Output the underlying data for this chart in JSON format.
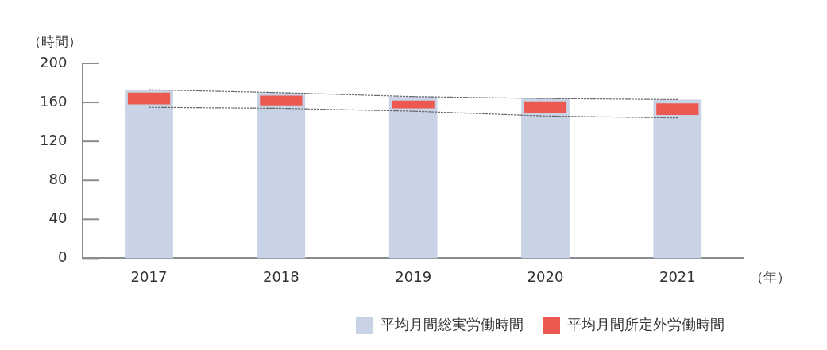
{
  "chart_data": {
    "type": "bar",
    "ylabel": "（時間）",
    "xlabel": "（年）",
    "categories": [
      "2017",
      "2018",
      "2019",
      "2020",
      "2021"
    ],
    "series": [
      {
        "name": "平均月間総実労働時間",
        "color": "#c8d3e6",
        "values": [
          173,
          170,
          166,
          164,
          163
        ]
      },
      {
        "name": "平均月間所定外労働時間",
        "color": "#eb5951",
        "values": [
          12,
          10,
          8,
          12,
          12
        ],
        "base": [
          158,
          157,
          154,
          149,
          147
        ]
      },
      {
        "type": "line",
        "color": "#666666",
        "line_style": "dotted",
        "marker": "none",
        "values": [
          173,
          170,
          166,
          164,
          163
        ]
      },
      {
        "type": "line",
        "color": "#666666",
        "line_style": "dotted",
        "marker": "none",
        "values": [
          155,
          154,
          151,
          146,
          144
        ]
      }
    ],
    "ylim": [
      0,
      200
    ],
    "yticks": [
      0,
      40,
      80,
      120,
      160,
      200
    ],
    "grid": false,
    "legend": "bottom right"
  }
}
